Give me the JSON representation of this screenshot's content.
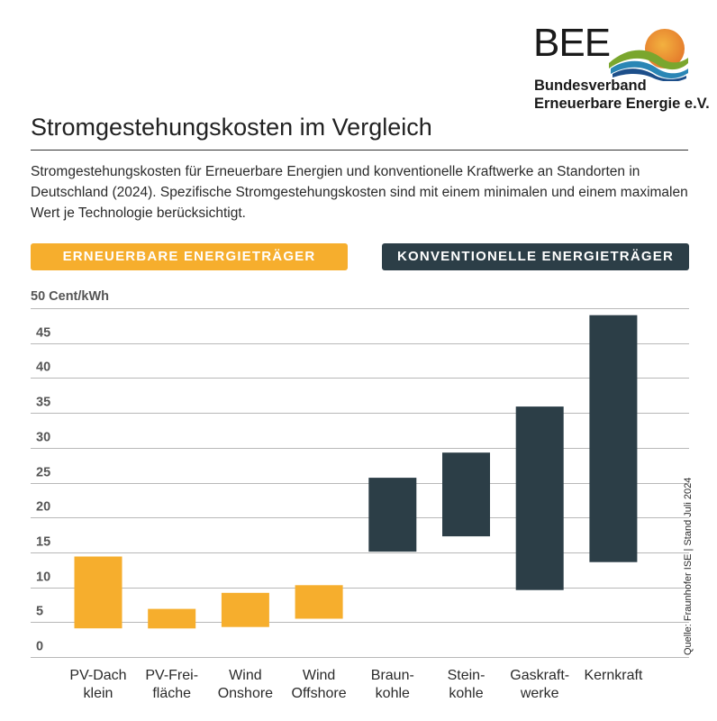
{
  "logo": {
    "word": "BEE",
    "line1": "Bundesverband",
    "line2": "Erneuerbare Energie e.V."
  },
  "title": "Stromgestehungskosten im Vergleich",
  "intro": "Stromgestehungskosten für Erneuerbare Energien und konventionelle Kraftwerke an Standorten in Deutschland (2024). Spezifische Stromgestehungskosten sind mit einem minimalen und einem maximalen Wert je Technologie berücksichtigt.",
  "categories_header": {
    "renewable": "ERNEUERBARE ENERGIETRÄGER",
    "conventional": "KONVENTIONELLE ENERGIETRÄGER"
  },
  "source": "Quelle: Fraunhofer ISE | Stand Juli 2024",
  "colors": {
    "renewable": "#f6ae2d",
    "conventional": "#2c3e47"
  },
  "chart_data": {
    "type": "bar",
    "subtype": "floating range (min–max)",
    "ylabel": "50 Cent/kWh",
    "ylim": [
      0,
      50
    ],
    "yticks": [
      0,
      5,
      10,
      15,
      20,
      25,
      30,
      35,
      40,
      45,
      50
    ],
    "ytick_labels": [
      "0",
      "5",
      "10",
      "15",
      "20",
      "25",
      "30",
      "35",
      "40",
      "45",
      ""
    ],
    "grid": true,
    "categories": [
      [
        "PV-Dach",
        "klein"
      ],
      [
        "PV-Frei-",
        "fläche"
      ],
      [
        "Wind",
        "Onshore"
      ],
      [
        "Wind",
        "Offshore"
      ],
      [
        "Braun-",
        "kohle"
      ],
      [
        "Stein-",
        "kohle"
      ],
      [
        "Gaskraft-",
        "werke"
      ],
      [
        "Kernkraft"
      ]
    ],
    "groups": [
      "renewable",
      "renewable",
      "renewable",
      "renewable",
      "conventional",
      "conventional",
      "conventional",
      "conventional"
    ],
    "min": [
      4.1,
      4.1,
      4.3,
      5.5,
      15.1,
      17.3,
      9.6,
      13.6
    ],
    "max": [
      14.4,
      6.9,
      9.2,
      10.3,
      25.7,
      29.3,
      35.9,
      49.0
    ]
  }
}
